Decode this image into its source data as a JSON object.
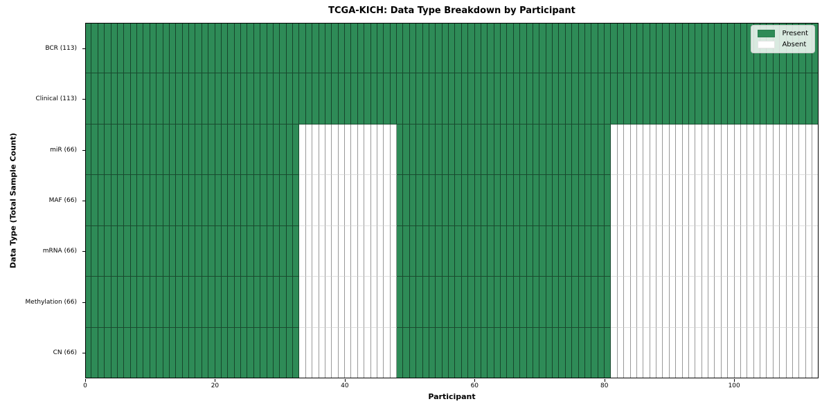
{
  "chart_data": {
    "type": "heatmap",
    "title": "TCGA-KICH: Data Type Breakdown by Participant",
    "xlabel": "Participant",
    "ylabel": "Data Type (Total Sample Count)",
    "legend_position": "upper right",
    "n_participants": 113,
    "xlim": [
      0,
      113
    ],
    "x_ticks": [
      0,
      20,
      40,
      60,
      80,
      100
    ],
    "colors": {
      "present": "#2e8b57",
      "absent": "#ffffff"
    },
    "legend": [
      {
        "label": "Present",
        "color": "#2e8b57"
      },
      {
        "label": "Absent",
        "color": "#ffffff"
      }
    ],
    "rows": [
      {
        "data_type": "BCR",
        "label": "BCR (113)",
        "total_sample_count": 113,
        "present_ranges": [
          [
            0,
            113
          ]
        ]
      },
      {
        "data_type": "Clinical",
        "label": "Clinical (113)",
        "total_sample_count": 113,
        "present_ranges": [
          [
            0,
            113
          ]
        ]
      },
      {
        "data_type": "miR",
        "label": "miR (66)",
        "total_sample_count": 66,
        "present_ranges": [
          [
            0,
            33
          ],
          [
            48,
            81
          ]
        ]
      },
      {
        "data_type": "MAF",
        "label": "MAF (66)",
        "total_sample_count": 66,
        "present_ranges": [
          [
            0,
            33
          ],
          [
            48,
            81
          ]
        ]
      },
      {
        "data_type": "mRNA",
        "label": "mRNA (66)",
        "total_sample_count": 66,
        "present_ranges": [
          [
            0,
            33
          ],
          [
            48,
            81
          ]
        ]
      },
      {
        "data_type": "Methylation",
        "label": "Methylation (66)",
        "total_sample_count": 66,
        "present_ranges": [
          [
            0,
            33
          ],
          [
            48,
            81
          ]
        ]
      },
      {
        "data_type": "CN",
        "label": "CN (66)",
        "total_sample_count": 66,
        "present_ranges": [
          [
            0,
            33
          ],
          [
            48,
            81
          ]
        ]
      }
    ]
  }
}
